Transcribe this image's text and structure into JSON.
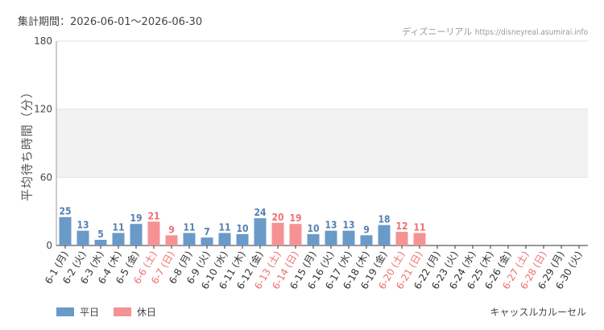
{
  "header": {
    "period": "集計期間：2026-06-01～2026-06-30",
    "site_name": "ディズニーリアル",
    "site_url": "https://disneyreal.asumirai.info"
  },
  "legend": {
    "weekday_label": "平日",
    "holiday_label": "休日"
  },
  "attraction_name": "キャッスルカルーセル",
  "colors": {
    "weekday": "#6a9ac8",
    "holiday": "#f59394",
    "weekday_text": "#5580b0",
    "holiday_text": "#ef6f70",
    "band": "#f2f2f2",
    "axis": "#333333"
  },
  "chart_data": {
    "type": "bar",
    "ylabel": "平均待ち時間（分）",
    "ylim": [
      0,
      180
    ],
    "yticks": [
      0,
      60,
      120,
      180
    ],
    "grid": true,
    "categories": [
      "6-1 (月)",
      "6-2 (火)",
      "6-3 (水)",
      "6-4 (木)",
      "6-5 (金)",
      "6-6 (土)",
      "6-7 (日)",
      "6-8 (月)",
      "6-9 (火)",
      "6-10 (水)",
      "6-11 (木)",
      "6-12 (金)",
      "6-13 (土)",
      "6-14 (日)",
      "6-15 (月)",
      "6-16 (火)",
      "6-17 (水)",
      "6-18 (木)",
      "6-19 (金)",
      "6-20 (土)",
      "6-21 (日)",
      "6-22 (月)",
      "6-23 (火)",
      "6-24 (水)",
      "6-25 (木)",
      "6-26 (金)",
      "6-27 (土)",
      "6-28 (日)",
      "6-29 (月)",
      "6-30 (火)"
    ],
    "day_type": [
      "weekday",
      "weekday",
      "weekday",
      "weekday",
      "weekday",
      "holiday",
      "holiday",
      "weekday",
      "weekday",
      "weekday",
      "weekday",
      "weekday",
      "holiday",
      "holiday",
      "weekday",
      "weekday",
      "weekday",
      "weekday",
      "weekday",
      "holiday",
      "holiday",
      "weekday",
      "weekday",
      "weekday",
      "weekday",
      "weekday",
      "holiday",
      "holiday",
      "weekday",
      "weekday"
    ],
    "values": [
      25,
      13,
      5,
      11,
      19,
      21,
      9,
      11,
      7,
      11,
      10,
      24,
      20,
      19,
      10,
      13,
      13,
      9,
      18,
      12,
      11,
      null,
      null,
      null,
      null,
      null,
      null,
      null,
      null,
      null
    ]
  }
}
